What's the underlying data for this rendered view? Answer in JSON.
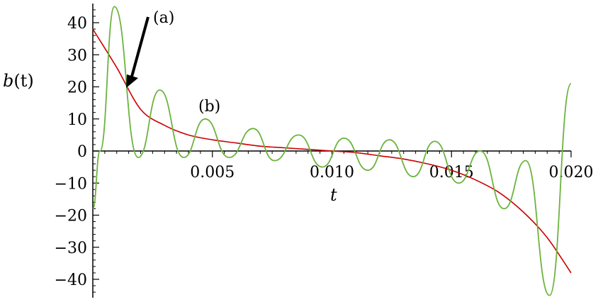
{
  "chart_data": {
    "type": "line",
    "title": "",
    "xlabel": "t",
    "ylabel_main": "b",
    "ylabel_paren": "(t)",
    "xlim": [
      0,
      0.02
    ],
    "ylim": [
      -45,
      45
    ],
    "x_ticks": [
      0.005,
      0.01,
      0.015,
      0.02
    ],
    "x_tick_labels": [
      "0.005",
      "0.010",
      "0.015",
      "0.020"
    ],
    "y_ticks": [
      40,
      30,
      20,
      10,
      0,
      -10,
      -20,
      -30,
      -40
    ],
    "y_tick_labels": [
      "40",
      "30",
      "20",
      "10",
      "0",
      "−10",
      "−20",
      "−30",
      "−40"
    ],
    "grid": false,
    "series": [
      {
        "color": "#cc0000",
        "x": [
          0,
          0.001,
          0.002,
          0.003,
          0.004,
          0.005,
          0.006,
          0.007,
          0.008,
          0.009,
          0.01,
          0.011,
          0.012,
          0.013,
          0.014,
          0.015,
          0.016,
          0.017,
          0.018,
          0.019,
          0.02
        ],
        "y": [
          38,
          26,
          13,
          8,
          5,
          3.5,
          2.5,
          1.5,
          1.0,
          0.5,
          0,
          -0.5,
          -1.5,
          -2.5,
          -4,
          -6,
          -9,
          -13,
          -19,
          -27,
          -38
        ]
      },
      {
        "color": "#6db33f",
        "x": [
          0,
          0.0003,
          0.0009,
          0.0019,
          0.0028,
          0.0038,
          0.0047,
          0.0057,
          0.0067,
          0.0076,
          0.0086,
          0.0096,
          0.0105,
          0.0115,
          0.0124,
          0.0134,
          0.0143,
          0.0153,
          0.0162,
          0.0172,
          0.0181,
          0.0191,
          0.02
        ],
        "y": [
          -18,
          0,
          45,
          -2,
          19,
          -2,
          10,
          -2,
          7,
          -3,
          5,
          -5,
          4,
          -6,
          3.5,
          -8,
          3,
          -10,
          0,
          -18,
          -3,
          -45,
          21
        ]
      }
    ],
    "annotations": [
      {
        "text": "(a)"
      },
      {
        "text": "(b)"
      }
    ]
  }
}
